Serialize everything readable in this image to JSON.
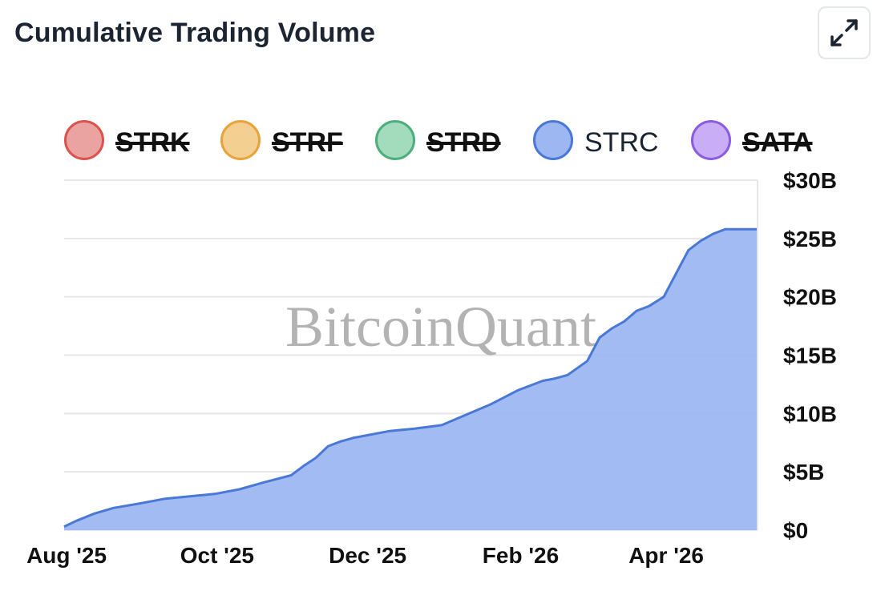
{
  "header": {
    "title": "Cumulative Trading Volume",
    "expand_icon": "expand-arrows-icon"
  },
  "legend": {
    "items": [
      {
        "label": "STRK",
        "color": "#d9534f",
        "fill": "#eba3a1",
        "active": false
      },
      {
        "label": "STRF",
        "color": "#e8a33a",
        "fill": "#f4cf92",
        "active": false
      },
      {
        "label": "STRD",
        "color": "#4cae7b",
        "fill": "#a2dcbc",
        "active": false
      },
      {
        "label": "STRC",
        "color": "#4a78d6",
        "fill": "#9db7f2",
        "active": true
      },
      {
        "label": "SATA",
        "color": "#8a5ce0",
        "fill": "#c9adf5",
        "active": false
      }
    ]
  },
  "watermark": "BitcoinQuant",
  "chart_data": {
    "type": "area",
    "title": "Cumulative Trading Volume",
    "xlabel": "",
    "ylabel": "",
    "series": [
      {
        "name": "STRC",
        "color": "#4a78d6",
        "fill": "#9db7f2",
        "x": [
          "2025-07-31",
          "2025-08-05",
          "2025-08-12",
          "2025-08-20",
          "2025-08-31",
          "2025-09-10",
          "2025-09-20",
          "2025-09-30",
          "2025-10-10",
          "2025-10-20",
          "2025-10-31",
          "2025-11-05",
          "2025-11-10",
          "2025-11-15",
          "2025-11-20",
          "2025-11-25",
          "2025-11-30",
          "2025-12-10",
          "2025-12-20",
          "2025-12-31",
          "2026-01-10",
          "2026-01-20",
          "2026-01-31",
          "2026-02-05",
          "2026-02-10",
          "2026-02-15",
          "2026-02-20",
          "2026-02-28",
          "2026-03-05",
          "2026-03-10",
          "2026-03-15",
          "2026-03-20",
          "2026-03-25",
          "2026-03-31",
          "2026-04-05",
          "2026-04-10",
          "2026-04-15",
          "2026-04-20",
          "2026-04-25",
          "2026-04-30",
          "2026-05-01",
          "2026-05-05",
          "2026-05-08"
        ],
        "values": [
          0.3,
          0.8,
          1.4,
          1.9,
          2.3,
          2.7,
          2.9,
          3.1,
          3.5,
          4.1,
          4.7,
          5.5,
          6.2,
          7.2,
          7.6,
          7.9,
          8.1,
          8.5,
          8.7,
          9.0,
          9.9,
          10.8,
          12.0,
          12.4,
          12.8,
          13.0,
          13.3,
          14.5,
          16.5,
          17.3,
          17.9,
          18.8,
          19.2,
          20.0,
          22.0,
          24.0,
          24.8,
          25.4,
          25.8,
          25.8,
          25.8,
          25.8,
          25.8
        ]
      }
    ],
    "x_ticks": [
      {
        "label": "Aug '25",
        "date": "2025-08-01"
      },
      {
        "label": "Oct '25",
        "date": "2025-10-01"
      },
      {
        "label": "Dec '25",
        "date": "2025-12-01"
      },
      {
        "label": "Feb '26",
        "date": "2026-02-01"
      },
      {
        "label": "Apr '26",
        "date": "2026-04-01"
      }
    ],
    "xlim": [
      "2025-07-31",
      "2026-05-08"
    ],
    "y_ticks": [
      {
        "label": "$0",
        "value": 0
      },
      {
        "label": "$5B",
        "value": 5
      },
      {
        "label": "$10B",
        "value": 10
      },
      {
        "label": "$15B",
        "value": 15
      },
      {
        "label": "$20B",
        "value": 20
      },
      {
        "label": "$25B",
        "value": 25
      },
      {
        "label": "$30B",
        "value": 30
      }
    ],
    "ylim": [
      0,
      30
    ],
    "y_unit": "$B",
    "y_axis_position": "right",
    "grid": true,
    "legend_position": "top"
  }
}
